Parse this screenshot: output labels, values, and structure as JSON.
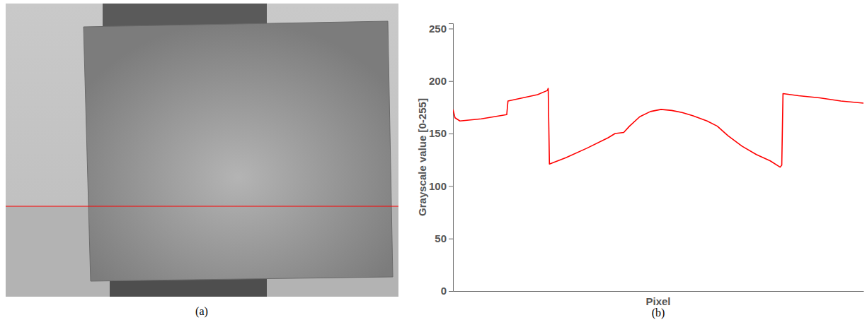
{
  "image_panel": {
    "caption": "(a)"
  },
  "chart_data": {
    "type": "line",
    "caption": "(b)",
    "x_label": "Pixel",
    "y_label": "Grayscale value [0-255]",
    "x": [
      0,
      5,
      17,
      69,
      131,
      134,
      206,
      230,
      232,
      235,
      275,
      326,
      378,
      395,
      416,
      430,
      455,
      481,
      507,
      533,
      558,
      584,
      619,
      644,
      670,
      704,
      739,
      773,
      797,
      801,
      804,
      842,
      893,
      945,
      1000
    ],
    "values": [
      173,
      165,
      162,
      164,
      168,
      181,
      187,
      191,
      193,
      121,
      127,
      136,
      146,
      150,
      151,
      157,
      166,
      171,
      173,
      172,
      170,
      167,
      162,
      157,
      148,
      138,
      130,
      124,
      118,
      120,
      188,
      186,
      184,
      181,
      179
    ],
    "color": "#ff0000",
    "xlim": [
      0,
      1000
    ],
    "ylim": [
      0,
      255
    ],
    "yticks": [
      0,
      50,
      100,
      150,
      200,
      250
    ],
    "tick_labels": "y",
    "grid": false
  }
}
